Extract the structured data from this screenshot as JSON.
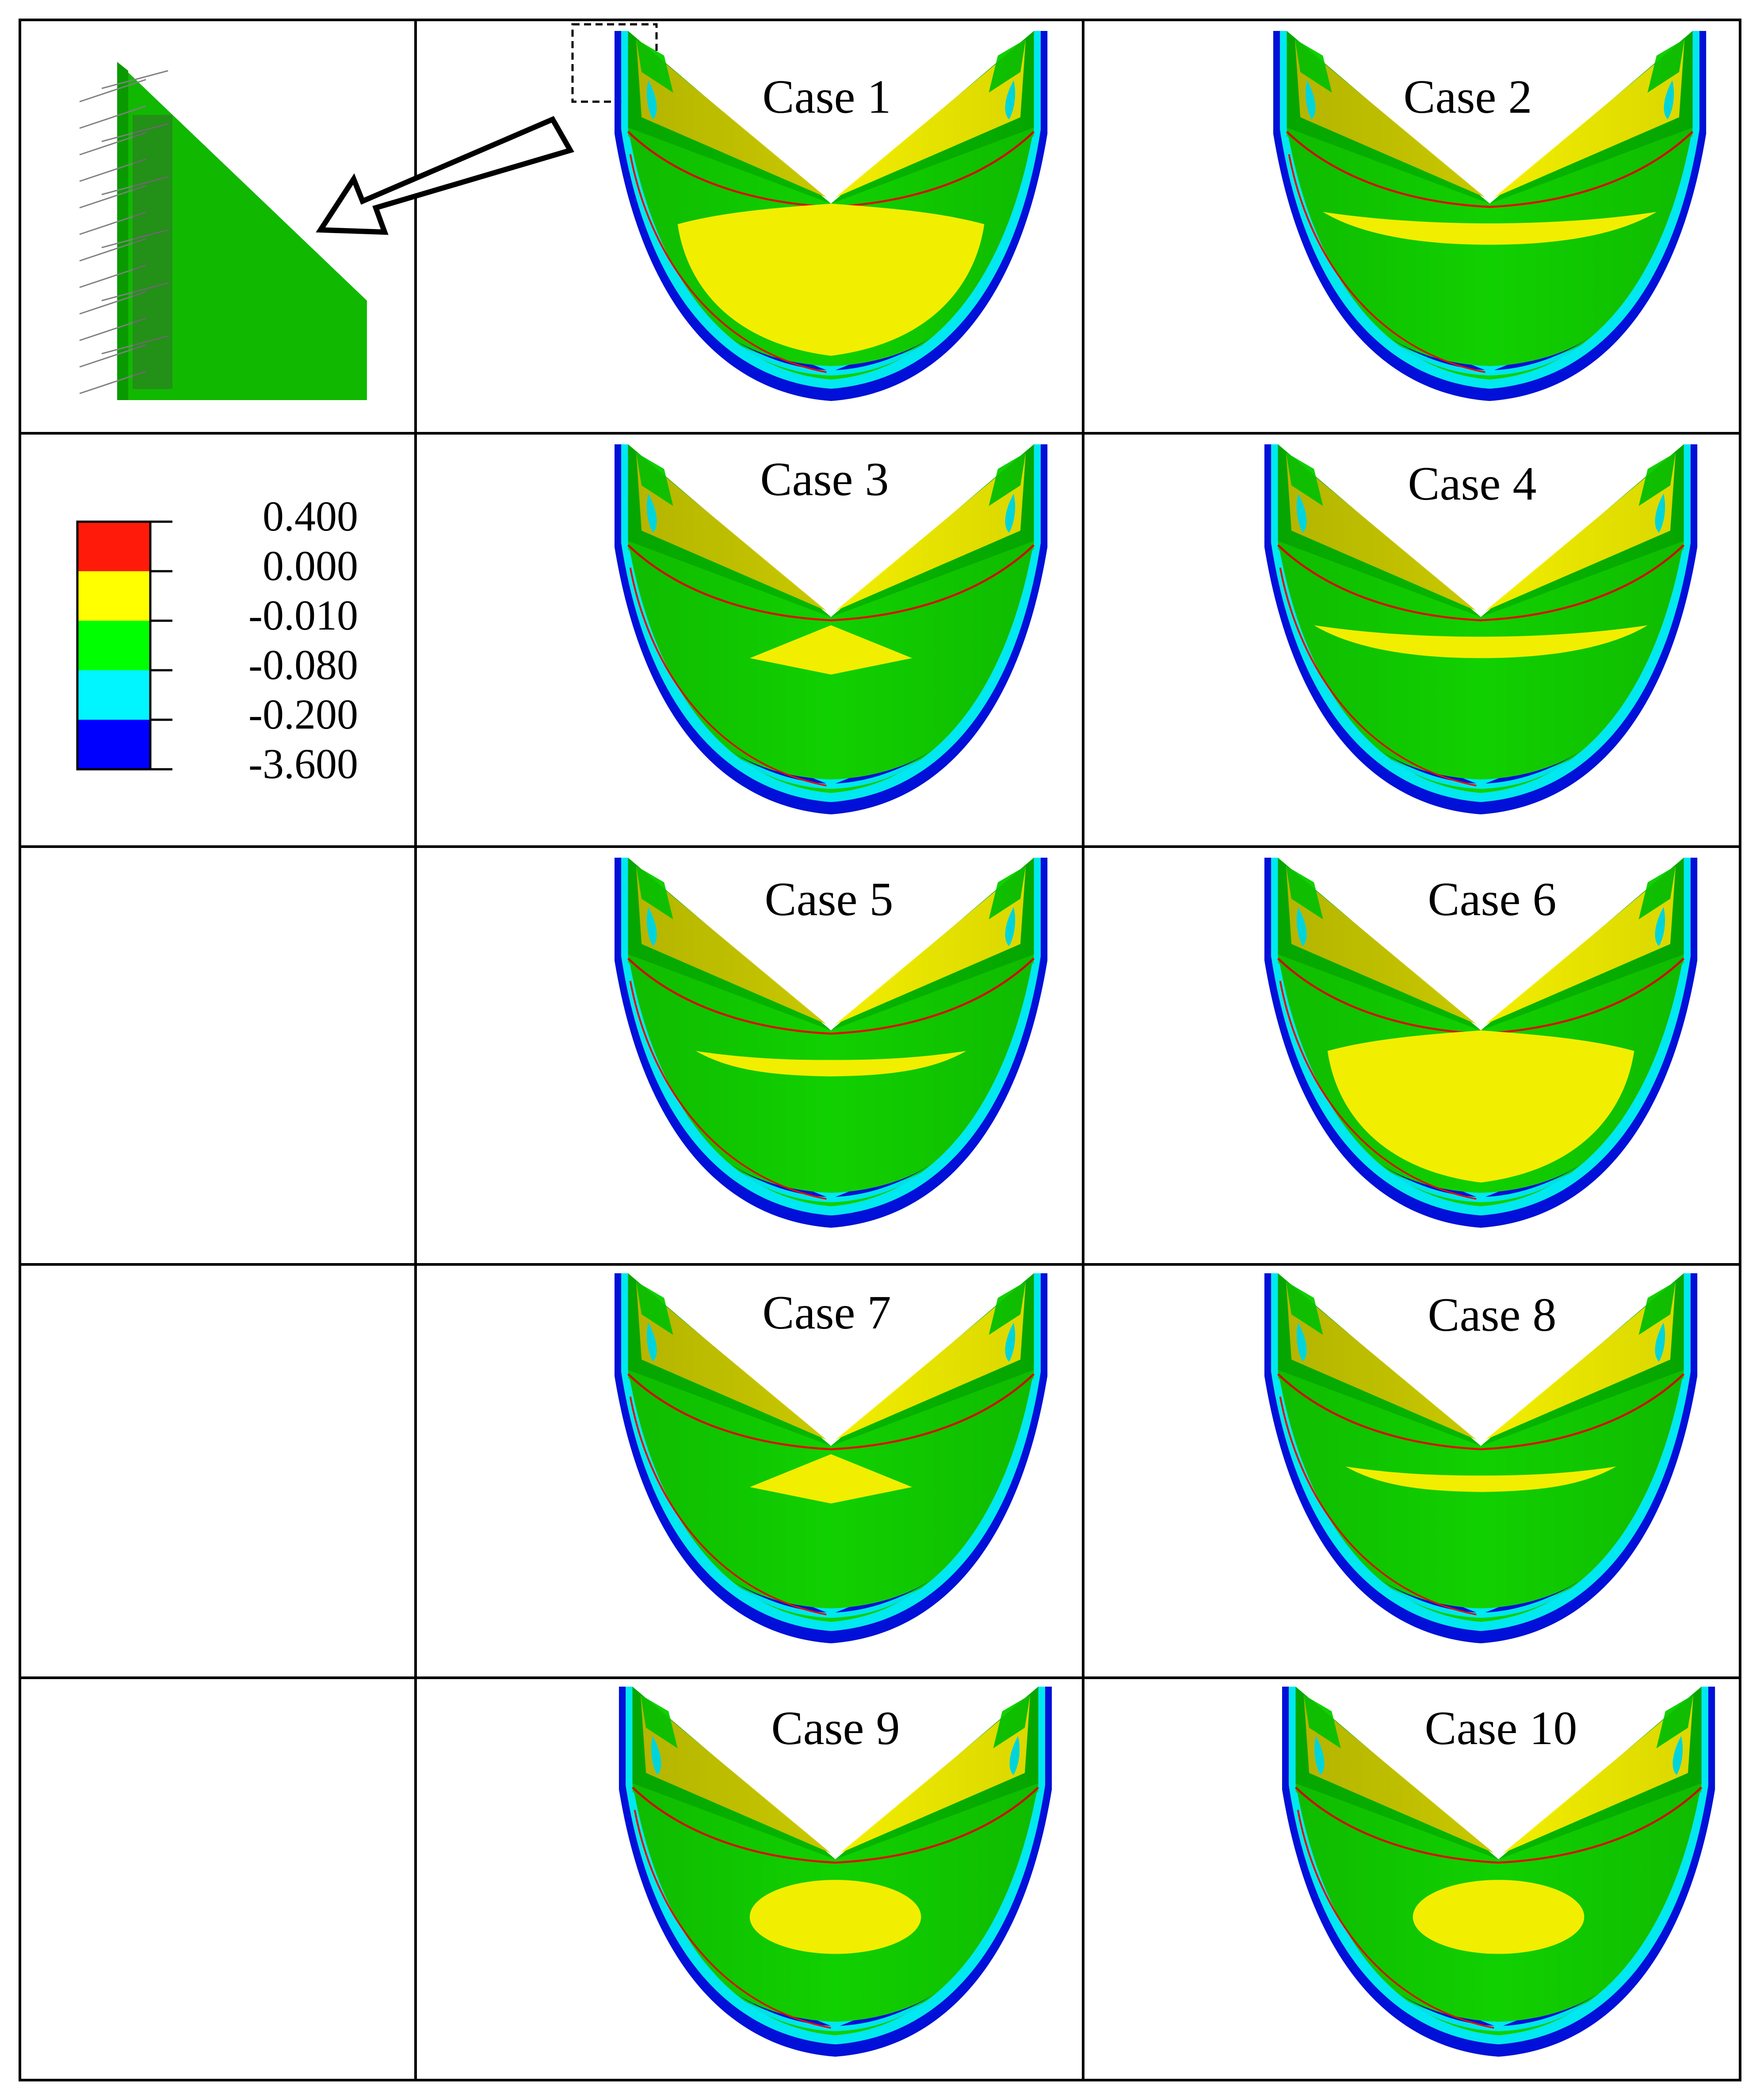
{
  "legend": {
    "values": [
      "0.400",
      "0.000",
      "-0.010",
      "-0.080",
      "-0.200",
      "-3.600"
    ],
    "colors": [
      "#ff1a0a",
      "#ffff00",
      "#00ff00",
      "#00f6ff",
      "#0000ff"
    ]
  },
  "palette": {
    "green_main": "#11d000",
    "green_dark": "#06b800",
    "yellow": "#f2ee00",
    "olive": "#c8c800",
    "cyan": "#00e8f0",
    "blue": "#0010d8",
    "red": "#e01000",
    "vector_gray": "#8a8a8a"
  },
  "cases": [
    {
      "label": "Case 1",
      "patch": "large"
    },
    {
      "label": "Case 2",
      "patch": "band"
    },
    {
      "label": "Case 3",
      "patch": "diamond"
    },
    {
      "label": "Case 4",
      "patch": "band"
    },
    {
      "label": "Case 5",
      "patch": "band-small"
    },
    {
      "label": "Case 6",
      "patch": "large"
    },
    {
      "label": "Case 7",
      "patch": "diamond"
    },
    {
      "label": "Case 8",
      "patch": "band-small"
    },
    {
      "label": "Case 9",
      "patch": "oval"
    },
    {
      "label": "Case 10",
      "patch": "oval"
    }
  ]
}
